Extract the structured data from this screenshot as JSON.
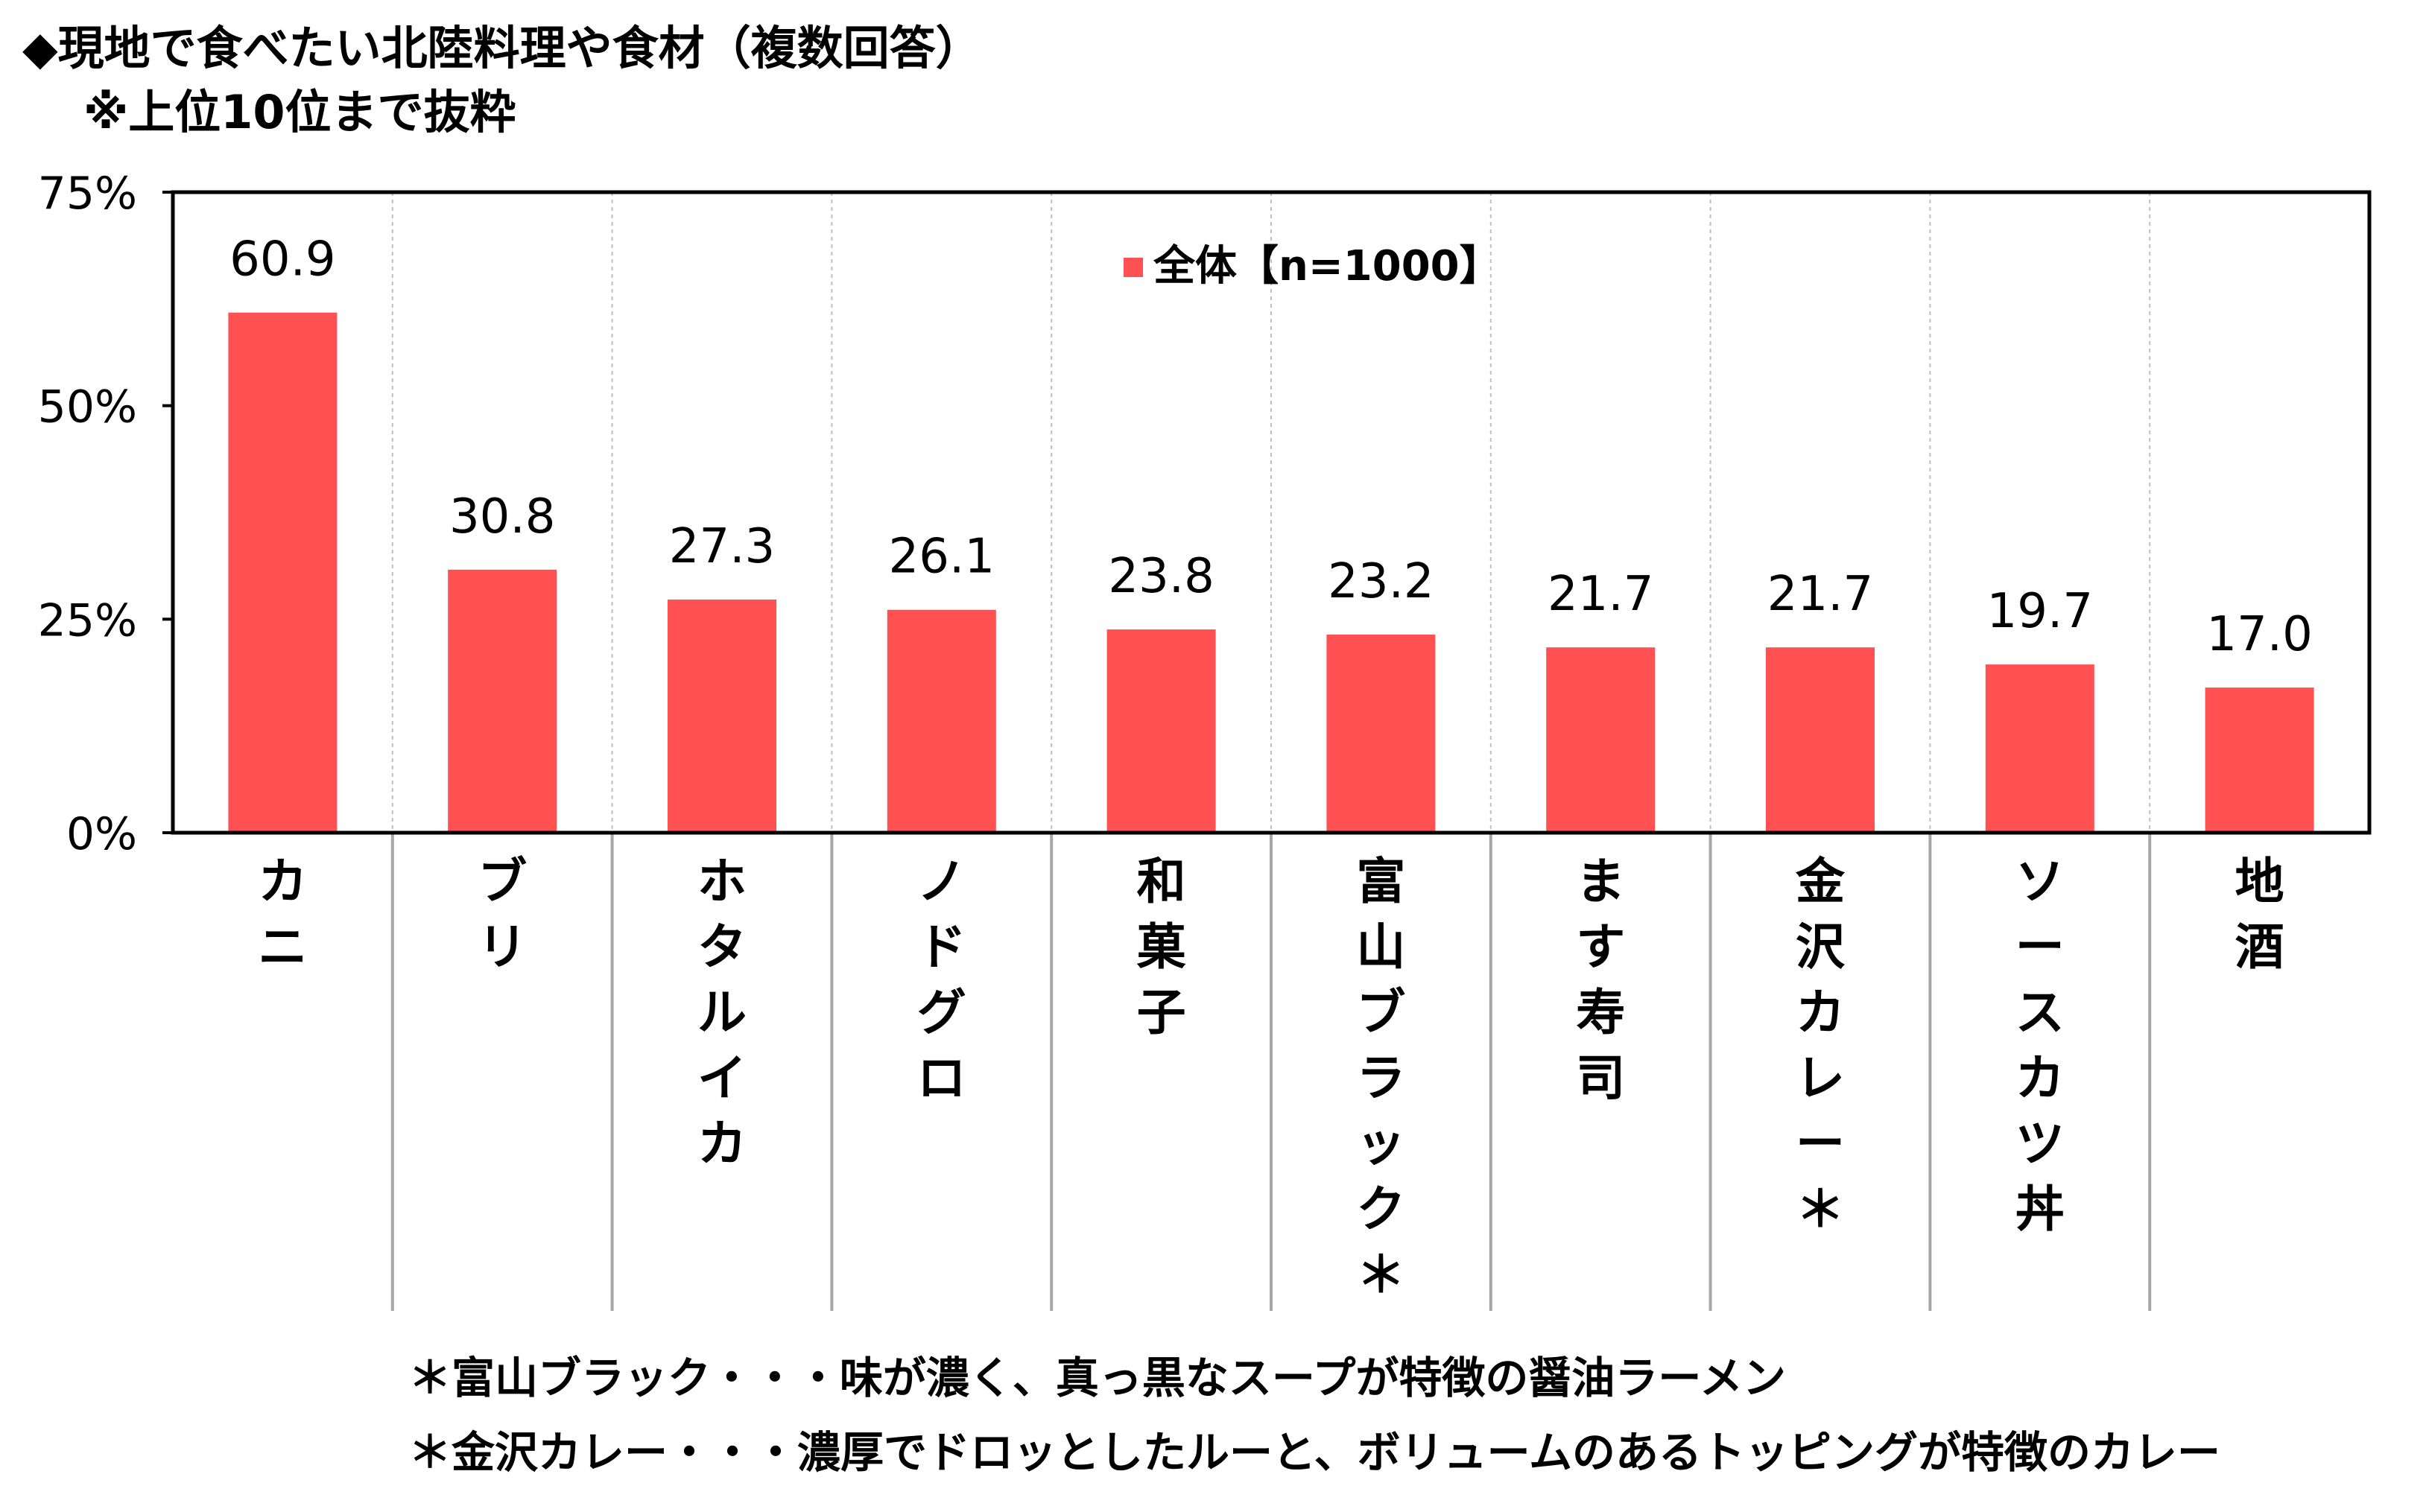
{
  "title": {
    "line1": "◆現地で食べたい北陸料理や食材（複数回答）",
    "line2": "※上位10位まで抜粋"
  },
  "colors": {
    "bar": "#FF5052",
    "frame": "#000000",
    "divider": "#BFBFBF",
    "category_separator": "#A6A6A6"
  },
  "chart_data": {
    "type": "bar",
    "categories": [
      "カニ",
      "ブリ",
      "ホタルイカ",
      "ノドグロ",
      "和菓子",
      "富山ブラック＊",
      "ます寿司",
      "金沢カレー＊",
      "ソースカツ丼",
      "地酒"
    ],
    "series": [
      {
        "name": "全体【n=1000】",
        "values": [
          60.9,
          30.8,
          27.3,
          26.1,
          23.8,
          23.2,
          21.7,
          21.7,
          19.7,
          17.0
        ]
      }
    ],
    "value_labels": [
      "60.9",
      "30.8",
      "27.3",
      "26.1",
      "23.8",
      "23.2",
      "21.7",
      "21.7",
      "19.7",
      "17.0"
    ],
    "ylim": [
      0,
      75
    ],
    "yticks": [
      0,
      25,
      50,
      75
    ],
    "ytick_labels": [
      "0%",
      "25%",
      "50%",
      "75%"
    ],
    "legend_position": "top-center",
    "grid": false
  },
  "notes": [
    "＊富山ブラック・・・味が濃く、真っ黒なスープが特徴の醤油ラーメン",
    "＊金沢カレー・・・濃厚でドロッとしたルーと、ボリュームのあるトッピングが特徴のカレー"
  ]
}
